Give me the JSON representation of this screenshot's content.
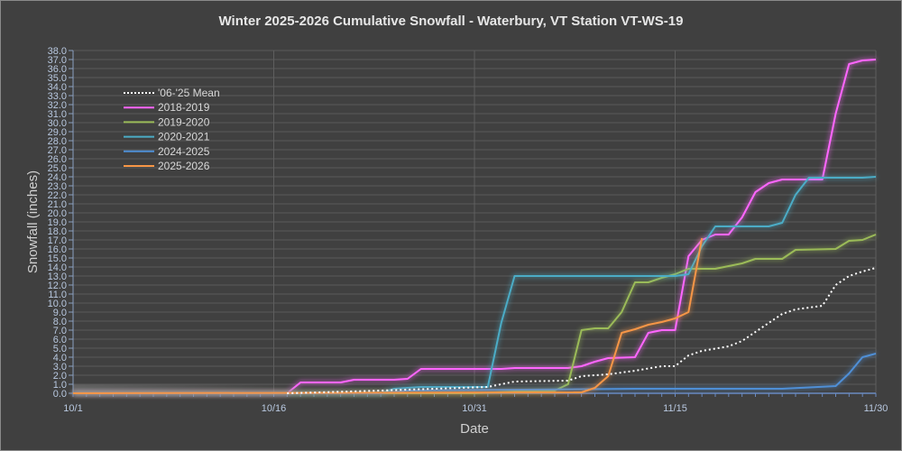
{
  "chart_data": {
    "type": "line",
    "title": "Winter 2025-2026 Cumulative Snowfall - Waterbury, VT Station VT-WS-19",
    "xlabel": "Date",
    "ylabel": "Snowfall (inches)",
    "xlim": [
      "10/1",
      "11/30"
    ],
    "ylim": [
      0,
      38
    ],
    "y_step": 1,
    "x_ticks": [
      "10/1",
      "10/16",
      "10/31",
      "11/15",
      "11/30"
    ],
    "grid": "horizontal major, vertical at x ticks",
    "legend_placement": "upper-left inside plot",
    "background_color": "#404040",
    "series": [
      {
        "name": "'06-'25 Mean",
        "color": "#ffffff",
        "style": "dotted",
        "points": [
          [
            "10/17",
            0
          ],
          [
            "10/24",
            0.3
          ],
          [
            "10/28",
            0.5
          ],
          [
            "11/1",
            0.7
          ],
          [
            "11/3",
            1.3
          ],
          [
            "11/7",
            1.4
          ],
          [
            "11/8",
            1.9
          ],
          [
            "11/10",
            2.1
          ],
          [
            "11/12",
            2.5
          ],
          [
            "11/14",
            3.0
          ],
          [
            "11/15",
            3.0
          ],
          [
            "11/16",
            4.2
          ],
          [
            "11/17",
            4.7
          ],
          [
            "11/19",
            5.2
          ],
          [
            "11/20",
            5.8
          ],
          [
            "11/22",
            7.8
          ],
          [
            "11/23",
            8.8
          ],
          [
            "11/24",
            9.3
          ],
          [
            "11/26",
            9.7
          ],
          [
            "11/27",
            12.0
          ],
          [
            "11/28",
            13.0
          ],
          [
            "11/29",
            13.5
          ],
          [
            "11/30",
            13.9
          ]
        ]
      },
      {
        "name": "2018-2019",
        "color": "#ff66ff",
        "style": "solid",
        "points": [
          [
            "10/1",
            0
          ],
          [
            "10/17",
            0
          ],
          [
            "10/18",
            1.2
          ],
          [
            "10/21",
            1.2
          ],
          [
            "10/22",
            1.5
          ],
          [
            "10/25",
            1.5
          ],
          [
            "10/26",
            1.6
          ],
          [
            "10/27",
            2.7
          ],
          [
            "11/2",
            2.7
          ],
          [
            "11/3",
            2.8
          ],
          [
            "11/7",
            2.8
          ],
          [
            "11/8",
            3.0
          ],
          [
            "11/9",
            3.5
          ],
          [
            "11/10",
            3.9
          ],
          [
            "11/12",
            4.0
          ],
          [
            "11/13",
            6.7
          ],
          [
            "11/14",
            7.0
          ],
          [
            "11/15",
            7.0
          ],
          [
            "11/16",
            15.2
          ],
          [
            "11/17",
            17.0
          ],
          [
            "11/18",
            17.6
          ],
          [
            "11/19",
            17.6
          ],
          [
            "11/20",
            19.5
          ],
          [
            "11/21",
            22.3
          ],
          [
            "11/22",
            23.3
          ],
          [
            "11/23",
            23.7
          ],
          [
            "11/26",
            23.7
          ],
          [
            "11/27",
            31.0
          ],
          [
            "11/28",
            36.5
          ],
          [
            "11/29",
            36.9
          ],
          [
            "11/30",
            37.0
          ]
        ]
      },
      {
        "name": "2019-2020",
        "color": "#9bbb59",
        "style": "solid",
        "points": [
          [
            "10/1",
            0
          ],
          [
            "10/31",
            0
          ],
          [
            "11/3",
            0.2
          ],
          [
            "11/6",
            0.3
          ],
          [
            "11/7",
            1.0
          ],
          [
            "11/8",
            7.0
          ],
          [
            "11/9",
            7.2
          ],
          [
            "11/10",
            7.2
          ],
          [
            "11/11",
            9.0
          ],
          [
            "11/12",
            12.3
          ],
          [
            "11/13",
            12.3
          ],
          [
            "11/14",
            12.8
          ],
          [
            "11/15",
            13.2
          ],
          [
            "11/16",
            13.8
          ],
          [
            "11/18",
            13.8
          ],
          [
            "11/19",
            14.1
          ],
          [
            "11/20",
            14.4
          ],
          [
            "11/21",
            14.9
          ],
          [
            "11/23",
            14.9
          ],
          [
            "11/24",
            15.9
          ],
          [
            "11/27",
            16.0
          ],
          [
            "11/28",
            16.9
          ],
          [
            "11/29",
            17.0
          ],
          [
            "11/30",
            17.6
          ]
        ]
      },
      {
        "name": "2020-2021",
        "color": "#4bacc6",
        "style": "solid",
        "points": [
          [
            "10/1",
            0
          ],
          [
            "10/24",
            0
          ],
          [
            "10/25",
            0.5
          ],
          [
            "10/27",
            0.7
          ],
          [
            "11/1",
            0.7
          ],
          [
            "11/2",
            7.8
          ],
          [
            "11/3",
            13.0
          ],
          [
            "11/15",
            13.0
          ],
          [
            "11/16",
            13.2
          ],
          [
            "11/17",
            16.3
          ],
          [
            "11/18",
            18.5
          ],
          [
            "11/22",
            18.5
          ],
          [
            "11/23",
            18.9
          ],
          [
            "11/24",
            22.0
          ],
          [
            "11/25",
            23.9
          ],
          [
            "11/29",
            23.9
          ],
          [
            "11/30",
            24.0
          ]
        ]
      },
      {
        "name": "2024-2025",
        "color": "#4f8fd6",
        "style": "solid",
        "points": [
          [
            "10/1",
            0
          ],
          [
            "10/24",
            0
          ],
          [
            "10/26",
            0.3
          ],
          [
            "11/12",
            0.5
          ],
          [
            "11/23",
            0.5
          ],
          [
            "11/27",
            0.8
          ],
          [
            "11/28",
            2.2
          ],
          [
            "11/29",
            4.0
          ],
          [
            "11/30",
            4.4
          ]
        ]
      },
      {
        "name": "2025-2026",
        "color": "#f79646",
        "style": "solid",
        "points": [
          [
            "10/1",
            0
          ],
          [
            "11/8",
            0.1
          ],
          [
            "11/9",
            0.6
          ],
          [
            "11/10",
            1.9
          ],
          [
            "11/11",
            6.7
          ],
          [
            "11/12",
            7.1
          ],
          [
            "11/13",
            7.6
          ],
          [
            "11/14",
            7.9
          ],
          [
            "11/15",
            8.3
          ],
          [
            "11/16",
            9.0
          ],
          [
            "11/17",
            17.2
          ]
        ]
      }
    ]
  }
}
